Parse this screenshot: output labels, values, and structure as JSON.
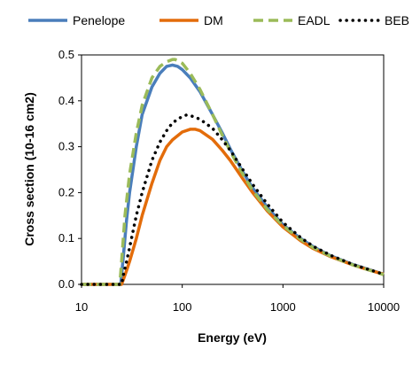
{
  "chart_data": {
    "type": "line",
    "title": "",
    "xlabel": "Energy (eV)",
    "ylabel": "Cross section (10-16 cm2)",
    "x_scale": "log",
    "xlim": [
      10,
      10000
    ],
    "ylim": [
      0,
      0.5
    ],
    "x_ticks": [
      10,
      100,
      1000,
      10000
    ],
    "x_tick_labels": [
      "10",
      "100",
      "1000",
      "10000"
    ],
    "y_ticks": [
      0,
      0.1,
      0.2,
      0.3,
      0.4,
      0.5
    ],
    "y_tick_labels": [
      "0.0",
      "0.1",
      "0.2",
      "0.3",
      "0.4",
      "0.5"
    ],
    "grid": false,
    "legend_position": "top",
    "series": [
      {
        "name": "Penelope",
        "color": "#4a7ebb",
        "dash": "solid",
        "x": [
          10,
          24.5,
          26,
          28,
          30,
          35,
          40,
          50,
          60,
          70,
          80,
          90,
          100,
          120,
          150,
          200,
          250,
          300,
          400,
          500,
          700,
          1000,
          1500,
          2000,
          3000,
          5000,
          7000,
          10000
        ],
        "y": [
          0,
          0,
          0.06,
          0.14,
          0.2,
          0.3,
          0.37,
          0.43,
          0.46,
          0.475,
          0.478,
          0.475,
          0.468,
          0.45,
          0.42,
          0.37,
          0.33,
          0.295,
          0.245,
          0.21,
          0.168,
          0.13,
          0.1,
          0.082,
          0.062,
          0.043,
          0.033,
          0.022
        ]
      },
      {
        "name": "DM",
        "color": "#e36c0a",
        "dash": "solid",
        "x": [
          10,
          25,
          26,
          28,
          30,
          35,
          40,
          50,
          60,
          70,
          80,
          100,
          120,
          135,
          150,
          200,
          250,
          300,
          400,
          500,
          700,
          1000,
          1500,
          2000,
          3000,
          5000,
          7000,
          10000
        ],
        "y": [
          0,
          0,
          0.01,
          0.03,
          0.05,
          0.1,
          0.15,
          0.22,
          0.27,
          0.3,
          0.315,
          0.332,
          0.338,
          0.338,
          0.335,
          0.316,
          0.292,
          0.27,
          0.23,
          0.2,
          0.16,
          0.125,
          0.095,
          0.078,
          0.06,
          0.042,
          0.032,
          0.022
        ]
      },
      {
        "name": "EADL",
        "color": "#9bbb59",
        "dash": "dashed",
        "x": [
          10,
          24,
          25,
          27,
          30,
          35,
          40,
          50,
          60,
          70,
          80,
          85,
          90,
          100,
          120,
          150,
          200,
          250,
          300,
          400,
          500,
          700,
          1000,
          1500,
          2000,
          3000,
          5000,
          7000,
          10000
        ],
        "y": [
          0,
          0,
          0.05,
          0.15,
          0.24,
          0.33,
          0.39,
          0.45,
          0.475,
          0.485,
          0.49,
          0.49,
          0.488,
          0.482,
          0.46,
          0.425,
          0.37,
          0.325,
          0.29,
          0.24,
          0.205,
          0.163,
          0.128,
          0.098,
          0.08,
          0.061,
          0.042,
          0.032,
          0.021
        ]
      },
      {
        "name": "BEB",
        "color": "#000000",
        "dash": "dotted",
        "x": [
          10,
          25,
          26,
          28,
          30,
          35,
          40,
          50,
          60,
          70,
          80,
          100,
          110,
          120,
          150,
          200,
          250,
          300,
          400,
          500,
          700,
          1000,
          1500,
          2000,
          3000,
          5000,
          7000,
          10000
        ],
        "y": [
          0,
          0,
          0.02,
          0.05,
          0.08,
          0.15,
          0.2,
          0.27,
          0.31,
          0.335,
          0.352,
          0.366,
          0.369,
          0.368,
          0.36,
          0.34,
          0.315,
          0.292,
          0.25,
          0.218,
          0.175,
          0.135,
          0.102,
          0.083,
          0.063,
          0.043,
          0.033,
          0.022
        ]
      }
    ]
  }
}
